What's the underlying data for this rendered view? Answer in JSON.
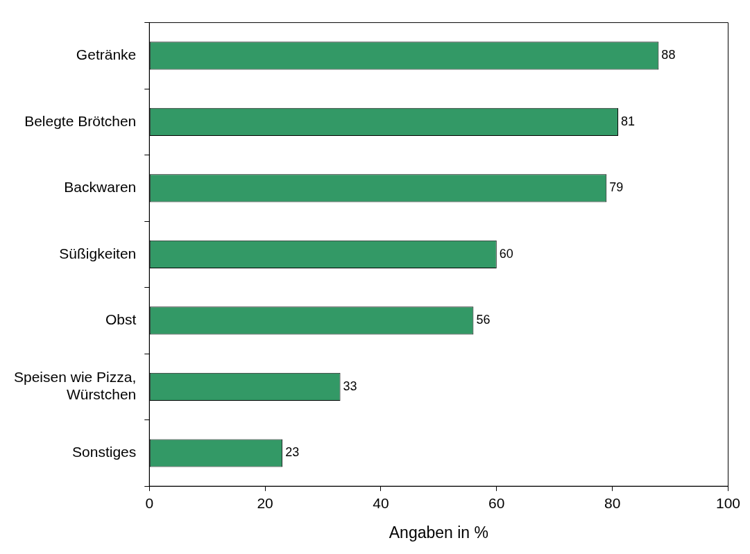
{
  "chart_data": {
    "type": "bar",
    "orientation": "horizontal",
    "xlabel": "Angaben in %",
    "categories": [
      "Getränke",
      "Belegte Brötchen",
      "Backwaren",
      "Süßigkeiten",
      "Obst",
      "Speisen wie Pizza, Würstchen",
      "Sonstiges"
    ],
    "values": [
      88,
      81,
      79,
      60,
      56,
      33,
      23
    ],
    "color": "#339966",
    "xlim": [
      0,
      100
    ],
    "xticks": [
      0,
      20,
      40,
      60,
      80,
      100
    ],
    "grid": false,
    "legend": false,
    "data_labels": true
  }
}
